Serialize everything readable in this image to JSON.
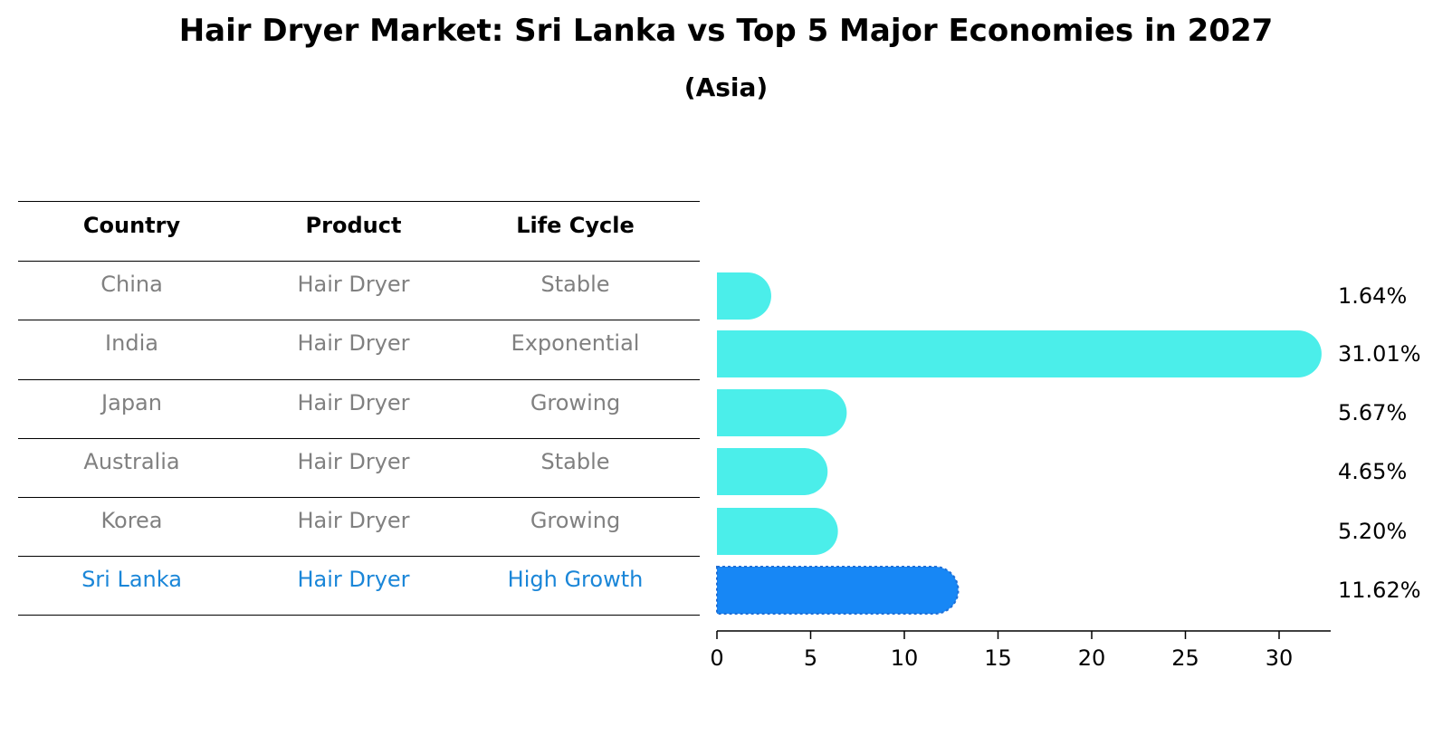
{
  "title": "Hair Dryer Market: Sri Lanka vs Top 5 Major Economies in 2027",
  "subtitle": "(Asia)",
  "colors": {
    "bar": "#4beeea",
    "highlight_bar": "#1787f5",
    "highlight_text": "#1a86d8",
    "muted_text": "#808080"
  },
  "table": {
    "headers": [
      "Country",
      "Product",
      "Life Cycle"
    ],
    "rows": [
      [
        "China",
        "Hair Dryer",
        "Stable"
      ],
      [
        "India",
        "Hair Dryer",
        "Exponential"
      ],
      [
        "Japan",
        "Hair Dryer",
        "Growing"
      ],
      [
        "Australia",
        "Hair Dryer",
        "Stable"
      ],
      [
        "Korea",
        "Hair Dryer",
        "Growing"
      ],
      [
        "Sri Lanka",
        "Hair Dryer",
        "High Growth"
      ]
    ],
    "highlight_row": "Sri Lanka"
  },
  "chart_data": {
    "type": "bar",
    "orientation": "horizontal",
    "categories": [
      "China",
      "India",
      "Japan",
      "Australia",
      "Korea",
      "Sri Lanka"
    ],
    "values": [
      1.64,
      31.01,
      5.67,
      4.65,
      5.2,
      11.62
    ],
    "value_labels": [
      "1.64%",
      "31.01%",
      "5.67%",
      "4.65%",
      "5.20%",
      "11.62%"
    ],
    "highlight": "Sri Lanka",
    "xlim": [
      0,
      32.5
    ],
    "xticks": [
      0,
      5,
      10,
      15,
      20,
      25,
      30
    ],
    "xlabel": "",
    "ylabel": "",
    "grid": false
  }
}
